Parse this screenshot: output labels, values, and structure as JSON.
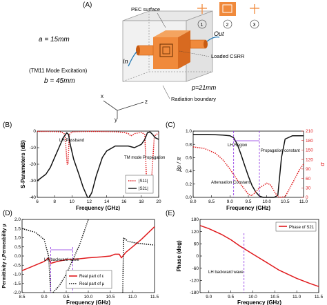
{
  "colors": {
    "red": "#e0191c",
    "black": "#111111",
    "purple": "#8a2be2",
    "orange": "#f08a3c",
    "orange_dark": "#c85a10",
    "grey": "#999999"
  },
  "panel_a": {
    "label": "(A)",
    "pec_surface": "PEC surface",
    "a_label": "a = 15mm",
    "b_label": "b = 45mm",
    "p_label": "p=21mm",
    "in_label": "In",
    "out_label": "Out",
    "excitation": "(TM11 Mode Excitation)",
    "loaded_csrr": "Loaded CSRR",
    "radiation_boundary": "Radiation boundary",
    "axis_x": "x",
    "axis_y": "y",
    "axis_z": "z",
    "unit_numbers": [
      "1",
      "2",
      "3"
    ]
  },
  "chart_data": [
    {
      "id": "B",
      "panel_label": "(B)",
      "type": "line",
      "xlabel": "Frequency (GHz)",
      "ylabel": "S-Parameters (dB)",
      "xlim": [
        6,
        20
      ],
      "ylim": [
        -40,
        0
      ],
      "xticks": [
        "6",
        "8",
        "10",
        "12",
        "14",
        "16",
        "18",
        "20"
      ],
      "yticks": [
        "0",
        "-10",
        "-20",
        "-30",
        "-40"
      ],
      "legend": {
        "placement": "bottom-right",
        "entries": [
          "|S11|",
          "|S21|"
        ]
      },
      "annotations": [
        "LH Passband",
        "TM mode Propagation"
      ],
      "series": [
        {
          "name": "|S11|",
          "style": "dotted",
          "color": "#e0191c",
          "x": [
            6,
            7,
            8,
            8.8,
            9.2,
            9.45,
            9.55,
            9.7,
            10,
            11,
            12,
            13,
            14,
            15,
            16,
            16.5,
            16.8,
            17.2,
            18,
            18.4,
            18.6,
            18.9,
            19.2,
            19.5,
            20
          ],
          "y": [
            -0.2,
            -0.2,
            -0.3,
            -0.5,
            -2,
            -20,
            -20,
            -2,
            -0.5,
            -0.3,
            -0.2,
            -0.2,
            -0.3,
            -0.4,
            -0.8,
            -1.5,
            -3,
            -1.5,
            -0.8,
            -2,
            -30,
            -35,
            -28,
            -3,
            -1
          ]
        },
        {
          "name": "|S21|",
          "style": "solid",
          "color": "#111111",
          "x": [
            6,
            7,
            7.5,
            8,
            8.5,
            9,
            9.4,
            9.6,
            9.8,
            10.2,
            10.8,
            11.3,
            11.8,
            12,
            12.3,
            12.8,
            13.5,
            14,
            15,
            16,
            16.5,
            17.2,
            18,
            18.4,
            18.7,
            19,
            19.3,
            19.6,
            20
          ],
          "y": [
            -30,
            -26,
            -22,
            -16,
            -10,
            -4,
            -1,
            -2,
            -8,
            -17,
            -26,
            -34,
            -40,
            -40,
            -37,
            -27,
            -16,
            -12,
            -9,
            -9,
            -9,
            -10,
            -8,
            -5,
            -1,
            -0.5,
            -2,
            -4,
            -5
          ]
        }
      ]
    },
    {
      "id": "C",
      "panel_label": "(C)",
      "type": "line",
      "xlabel": "Frequency (GHz)",
      "ylabel_left": "βp / π",
      "ylabel_right": "α",
      "xlim": [
        8.0,
        11.0
      ],
      "ylim_left": [
        0,
        1.0
      ],
      "ylim_right": [
        0,
        210
      ],
      "xticks": [
        "8.0",
        "8.5",
        "9.0",
        "9.5",
        "10.0",
        "10.5",
        "11.0"
      ],
      "yticks_left": [
        "0.0",
        "0.2",
        "0.4",
        "0.6",
        "0.8",
        "1.0"
      ],
      "yticks_right": [
        "0",
        "30",
        "60",
        "90",
        "120",
        "150",
        "180",
        "210"
      ],
      "annotations": [
        "LH Region",
        "Propagation constant",
        "Attenuation Constant"
      ],
      "series": [
        {
          "name": "Propagation constant",
          "style": "solid",
          "color": "#111111",
          "axis": "left",
          "x": [
            8.0,
            8.4,
            8.8,
            9.0,
            9.1,
            9.2,
            9.3,
            9.4,
            9.5,
            9.6,
            9.7,
            9.8,
            9.9,
            10.0,
            10.1,
            10.2,
            10.3,
            10.4,
            10.5,
            10.7,
            10.9,
            11.0
          ],
          "y": [
            0.95,
            0.95,
            0.94,
            0.93,
            0.9,
            0.8,
            0.65,
            0.48,
            0.32,
            0.18,
            0.08,
            0.02,
            0.0,
            0.0,
            0.0,
            0.0,
            0.03,
            0.6,
            0.88,
            0.93,
            0.93,
            0.93
          ]
        },
        {
          "name": "Attenuation Constant",
          "style": "dotted",
          "color": "#e0191c",
          "axis": "right",
          "x": [
            8.0,
            8.3,
            8.6,
            8.8,
            9.0,
            9.2,
            9.4,
            9.5,
            9.6,
            9.8,
            10.0,
            10.1,
            10.2,
            10.3,
            10.35,
            10.5,
            10.7,
            10.9,
            11.0
          ],
          "y": [
            160,
            155,
            140,
            120,
            90,
            55,
            25,
            10,
            5,
            30,
            45,
            40,
            20,
            2,
            0,
            2,
            45,
            90,
            105
          ]
        }
      ]
    },
    {
      "id": "D",
      "panel_label": "(D)",
      "type": "line",
      "xlabel": "Frequency (GHz)",
      "ylabel": "Permittivity ε,Permeability μ",
      "xlim": [
        8.5,
        11.5
      ],
      "ylim": [
        -2.0,
        2.0
      ],
      "xticks": [
        "8.5",
        "9.0",
        "9.5",
        "10.0",
        "10.5",
        "11.0",
        "11.5"
      ],
      "yticks": [
        "2.0",
        "1.5",
        "1.0",
        "0.5",
        "0.0",
        "-0.5",
        "-1.0",
        "-1.5",
        "-2.0"
      ],
      "legend": {
        "placement": "bottom-center",
        "entries": [
          "Real part of ε",
          "Real part of μ"
        ]
      },
      "annotations": [
        "LH backward wave"
      ],
      "series": [
        {
          "name": "Real part of ε",
          "style": "solid",
          "color": "#e0191c",
          "x": [
            8.5,
            8.7,
            8.9,
            9.0,
            9.1,
            9.15,
            9.3,
            9.5,
            9.8,
            10.0,
            10.3,
            10.5,
            10.6,
            10.7,
            10.75,
            10.85,
            11.0,
            11.2,
            11.5
          ],
          "y": [
            -0.8,
            -0.6,
            -0.4,
            -0.3,
            -0.1,
            -0.4,
            -0.3,
            -0.2,
            -0.15,
            -0.1,
            -0.05,
            0.0,
            0.1,
            0.1,
            -0.1,
            0.2,
            0.5,
            0.9,
            1.6
          ]
        },
        {
          "name": "Real part of μ",
          "style": "dotted",
          "color": "#111111",
          "segments": [
            {
              "x": [
                8.5,
                8.8,
                9.0,
                9.1,
                9.15
              ],
              "y": [
                1.5,
                1.3,
                0.9,
                0.0,
                -2.0
              ]
            },
            {
              "x": [
                9.2,
                9.35,
                9.5,
                9.65,
                9.8,
                10.0
              ],
              "y": [
                -2.0,
                -1.6,
                -1.0,
                -0.2,
                0.6,
                2.0
              ]
            },
            {
              "x": [
                10.78,
                10.8,
                10.9,
                11.1,
                11.3,
                11.5
              ],
              "y": [
                -2.0,
                1.0,
                0.8,
                0.7,
                0.65,
                0.6
              ]
            }
          ]
        }
      ]
    },
    {
      "id": "E",
      "panel_label": "(E)",
      "type": "line",
      "xlabel": "Frequency (GHz)",
      "ylabel": "Phase (deg)",
      "xlim": [
        8.8,
        11.5
      ],
      "ylim": [
        -180,
        180
      ],
      "xticks": [
        "9.0",
        "9.5",
        "10.0",
        "10.5",
        "11.0",
        "11.5"
      ],
      "yticks": [
        "180",
        "120",
        "60",
        "0",
        "-60",
        "-120",
        "-180"
      ],
      "legend": {
        "placement": "top-right",
        "entries": [
          "Phase of S21"
        ]
      },
      "annotations": [
        "LH backward wave"
      ],
      "series": [
        {
          "name": "Phase of S21",
          "style": "solid",
          "color": "#e0191c",
          "x": [
            8.8,
            9.0,
            9.3,
            9.5,
            9.7,
            10.0,
            10.3,
            10.6,
            11.0,
            11.3,
            11.5
          ],
          "y": [
            150,
            135,
            105,
            80,
            50,
            10,
            -30,
            -70,
            -110,
            -135,
            -150
          ]
        }
      ]
    }
  ]
}
